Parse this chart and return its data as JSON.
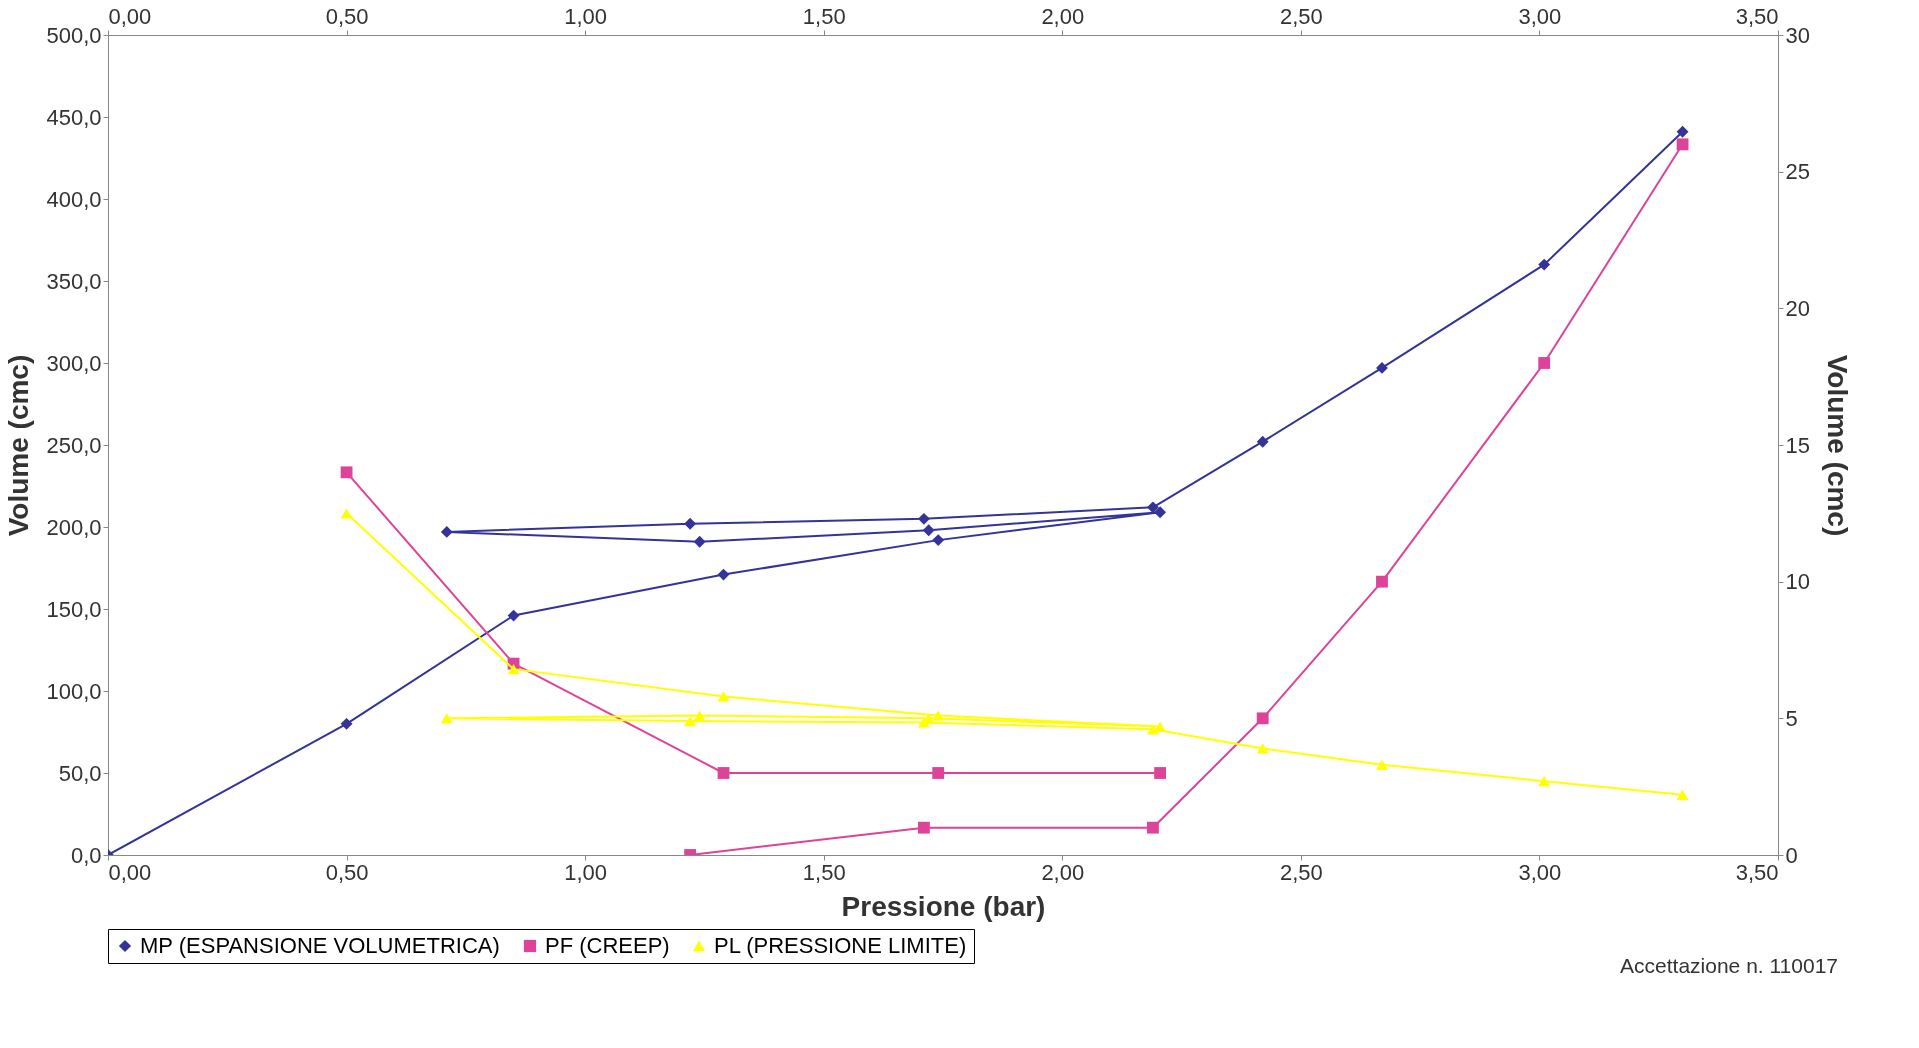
{
  "chart_data": {
    "type": "line",
    "xlabel": "Pressione (bar)",
    "ylabel": "Volume (cmc)",
    "y2label": "Volume (cmc)",
    "x": [
      0,
      0.5,
      0.85,
      1.29,
      1.74,
      2.205,
      1.72,
      1.24,
      0.71,
      1.22,
      1.71,
      2.19,
      2.42,
      2.67,
      3.01,
      3.3
    ],
    "series": [
      {
        "name": "MP (ESPANSIONE VOLUMETRICA)",
        "color": "#333399",
        "marker": "diamond",
        "values": [
          0,
          80,
          146,
          171,
          192,
          209,
          198,
          191,
          197,
          202,
          205,
          212,
          252,
          297,
          360,
          441
        ]
      },
      {
        "name": "PF (CREEP)",
        "color": "#dd4499",
        "marker": "square",
        "axis": "y2",
        "values": [
          null,
          14,
          7,
          3,
          3,
          3,
          null,
          null,
          null,
          0,
          1,
          1,
          5,
          10,
          18,
          26
        ]
      },
      {
        "name": "PL (PRESSIONE LIMITE)",
        "color": "#ffff00",
        "marker": "triangle",
        "axis": "y2",
        "values": [
          null,
          12.5,
          6.8,
          5.8,
          5.1,
          4.7,
          5.0,
          5.1,
          5.0,
          4.9,
          4.85,
          4.6,
          3.9,
          3.3,
          2.7,
          2.2
        ]
      }
    ],
    "xlim": [
      0,
      3.5
    ],
    "xticks": [
      {
        "value": 0,
        "label": "0,00"
      },
      {
        "value": 0.5,
        "label": "0,50"
      },
      {
        "value": 1,
        "label": "1,00"
      },
      {
        "value": 1.5,
        "label": "1,50"
      },
      {
        "value": 2,
        "label": "2,00"
      },
      {
        "value": 2.5,
        "label": "2,50"
      },
      {
        "value": 3,
        "label": "3,00"
      },
      {
        "value": 3.5,
        "label": "3,50"
      }
    ],
    "x2lim": [
      0,
      3.5
    ],
    "x2ticks": [
      {
        "value": 0,
        "label": "0,00"
      },
      {
        "value": 0.5,
        "label": "0,50"
      },
      {
        "value": 1,
        "label": "1,00"
      },
      {
        "value": 1.5,
        "label": "1,50"
      },
      {
        "value": 2,
        "label": "2,00"
      },
      {
        "value": 2.5,
        "label": "2,50"
      },
      {
        "value": 3,
        "label": "3,00"
      },
      {
        "value": 3.5,
        "label": "3,50"
      }
    ],
    "ylim": [
      0,
      500
    ],
    "yticks": [
      {
        "value": 0,
        "label": "0,0"
      },
      {
        "value": 50,
        "label": "50,0"
      },
      {
        "value": 100,
        "label": "100,0"
      },
      {
        "value": 150,
        "label": "150,0"
      },
      {
        "value": 200,
        "label": "200,0"
      },
      {
        "value": 250,
        "label": "250,0"
      },
      {
        "value": 300,
        "label": "300,0"
      },
      {
        "value": 350,
        "label": "350,0"
      },
      {
        "value": 400,
        "label": "400,0"
      },
      {
        "value": 450,
        "label": "450,0"
      },
      {
        "value": 500,
        "label": "500,0"
      }
    ],
    "y2lim": [
      0,
      30
    ],
    "y2ticks": [
      0,
      5,
      10,
      15,
      20,
      25,
      30
    ],
    "grid": false,
    "legend": "bottom",
    "line_style": "solid",
    "annotations": [
      "Accettazione n. 110017"
    ]
  }
}
